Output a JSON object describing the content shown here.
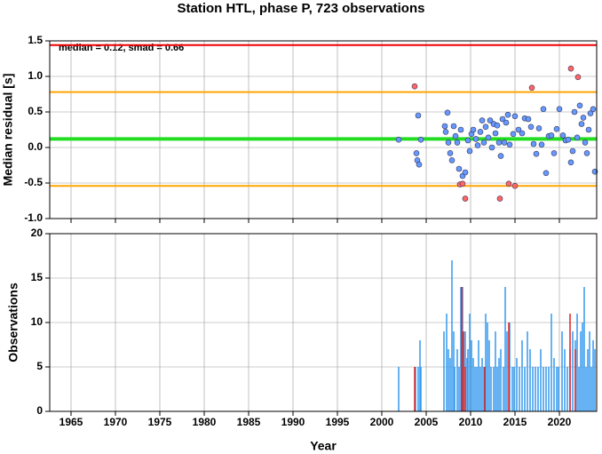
{
  "chart_data": [
    {
      "type": "scatter",
      "title": "Station HTL, phase P, 723 observations",
      "annotation": "median = 0.12, smad = 0.66",
      "ylabel": "Median residual [s]",
      "xlim": [
        1962.6,
        2024.2
      ],
      "ylim": [
        -1.0,
        1.5
      ],
      "xticks": [
        1965,
        1970,
        1975,
        1980,
        1985,
        1990,
        1995,
        2000,
        2005,
        2010,
        2015,
        2020
      ],
      "yticks": [
        {
          "value": -1.0,
          "label": "-1.0"
        },
        -0.5,
        {
          "value": 0.0,
          "label": "0.0"
        },
        0.5,
        {
          "value": 1.0,
          "label": "1.0"
        },
        1.5
      ],
      "grid": true,
      "hlines": [
        {
          "value": 1.44,
          "color": "#ee0000"
        },
        {
          "value": 0.78,
          "color": "#ffa500"
        },
        {
          "value": -0.54,
          "color": "#ffa500"
        },
        {
          "value": 0.12,
          "color": "#22dd22"
        }
      ],
      "series": [
        {
          "color": "#6699ff",
          "x": [
            2001.9,
            2003.9,
            2004.0,
            2004.2,
            2004.1,
            2004.4,
            2007.2,
            2007.1,
            2007.4,
            2007.5,
            2007.7,
            2007.9,
            2008.1,
            2008.3,
            2008.5,
            2008.7,
            2008.9,
            2009.1,
            2009.4,
            2009.7,
            2009.9,
            2010.1,
            2010.3,
            2010.6,
            2010.8,
            2011.1,
            2011.3,
            2011.5,
            2011.7,
            2012.0,
            2012.2,
            2012.4,
            2012.6,
            2012.8,
            2013.0,
            2013.2,
            2013.4,
            2013.6,
            2013.8,
            2014.0,
            2014.2,
            2014.4,
            2014.8,
            2015.0,
            2015.4,
            2015.8,
            2016.1,
            2016.5,
            2016.8,
            2017.1,
            2017.4,
            2017.7,
            2018.0,
            2018.2,
            2018.5,
            2018.8,
            2019.1,
            2019.4,
            2019.7,
            2020.0,
            2020.4,
            2020.7,
            2021.0,
            2021.3,
            2021.5,
            2021.7,
            2022.0,
            2022.3,
            2022.5,
            2022.7,
            2022.9,
            2023.1,
            2023.3,
            2023.5,
            2023.8,
            2024.0
          ],
          "y": [
            0.11,
            -0.08,
            -0.18,
            -0.24,
            0.45,
            0.11,
            0.22,
            0.3,
            0.49,
            0.07,
            -0.08,
            -0.18,
            0.3,
            0.16,
            0.07,
            -0.3,
            0.25,
            -0.4,
            -0.35,
            0.1,
            -0.05,
            0.19,
            0.25,
            0.12,
            0.03,
            0.22,
            0.38,
            0.07,
            0.29,
            0.14,
            0.38,
            0.0,
            0.33,
            0.2,
            0.31,
            0.07,
            -0.12,
            0.4,
            0.07,
            0.35,
            0.46,
            0.04,
            0.19,
            0.44,
            0.25,
            0.2,
            0.41,
            0.4,
            0.29,
            0.05,
            -0.09,
            0.27,
            0.04,
            0.54,
            -0.36,
            0.16,
            0.17,
            -0.08,
            0.26,
            0.54,
            0.17,
            0.1,
            0.11,
            -0.21,
            -0.05,
            0.5,
            0.14,
            0.59,
            0.33,
            0.42,
            0.07,
            -0.08,
            0.25,
            0.48,
            0.54,
            -0.34
          ]
        },
        {
          "color": "#ff6666",
          "x": [
            2003.7,
            2008.8,
            2009.1,
            2009.4,
            2013.3,
            2014.3,
            2015.0,
            2016.9,
            2021.3,
            2022.1
          ],
          "y": [
            0.86,
            -0.52,
            -0.51,
            -0.72,
            -0.72,
            -0.51,
            -0.54,
            0.84,
            1.11,
            0.99
          ]
        }
      ]
    },
    {
      "type": "bar",
      "ylabel": "Observations",
      "xlabel": "Year",
      "xlim": [
        1962.6,
        2024.2
      ],
      "ylim": [
        0,
        20
      ],
      "xticks": [
        1965,
        1970,
        1975,
        1980,
        1985,
        1990,
        1995,
        2000,
        2005,
        2010,
        2015,
        2020
      ],
      "yticks": [
        0,
        5,
        10,
        15,
        20
      ],
      "grid": true,
      "series": [
        {
          "color": "#3399ee",
          "x": [
            2001.9,
            2003.8,
            2004.1,
            2004.3,
            2004.4,
            2007.0,
            2007.3,
            2007.5,
            2007.7,
            2007.9,
            2008.1,
            2008.2,
            2008.5,
            2008.7,
            2008.9,
            2009.1,
            2009.2,
            2009.4,
            2009.6,
            2009.7,
            2009.9,
            2010.1,
            2010.3,
            2010.5,
            2010.7,
            2010.9,
            2011.1,
            2011.3,
            2011.5,
            2011.7,
            2011.9,
            2012.1,
            2012.3,
            2012.6,
            2012.8,
            2013.0,
            2013.2,
            2013.4,
            2013.7,
            2013.9,
            2014.1,
            2014.4,
            2014.7,
            2014.9,
            2015.2,
            2015.5,
            2015.8,
            2016.1,
            2016.4,
            2016.7,
            2017.0,
            2017.3,
            2017.6,
            2017.9,
            2018.2,
            2018.5,
            2018.8,
            2019.1,
            2019.4,
            2019.7,
            2019.9,
            2020.3,
            2020.6,
            2020.9,
            2021.2,
            2021.5,
            2021.8,
            2022.0,
            2022.2,
            2022.4,
            2022.6,
            2022.8,
            2023.0,
            2023.2,
            2023.4,
            2023.6,
            2023.8,
            2024.0
          ],
          "values": [
            5,
            5,
            5,
            8,
            5,
            9,
            11,
            7,
            6,
            17,
            9,
            5,
            7,
            5,
            14,
            14,
            9,
            9,
            6,
            7,
            11,
            8,
            6,
            5,
            5,
            8,
            5,
            6,
            5,
            11,
            10,
            8,
            5,
            5,
            9,
            5,
            6,
            7,
            5,
            14,
            9,
            10,
            5,
            5,
            6,
            5,
            8,
            5,
            9,
            7,
            5,
            5,
            5,
            7,
            5,
            5,
            5,
            11,
            6,
            5,
            5,
            9,
            7,
            5,
            7,
            9,
            8,
            11,
            5,
            9,
            10,
            14,
            5,
            7,
            9,
            5,
            8,
            7
          ]
        },
        {
          "color": "#dd2222",
          "x": [
            2003.7,
            2009.0,
            2009.2,
            2009.4,
            2011.6,
            2014.3,
            2021.2,
            2021.8
          ],
          "values": [
            5,
            14,
            9,
            5,
            5,
            10,
            11,
            7
          ]
        }
      ]
    }
  ]
}
